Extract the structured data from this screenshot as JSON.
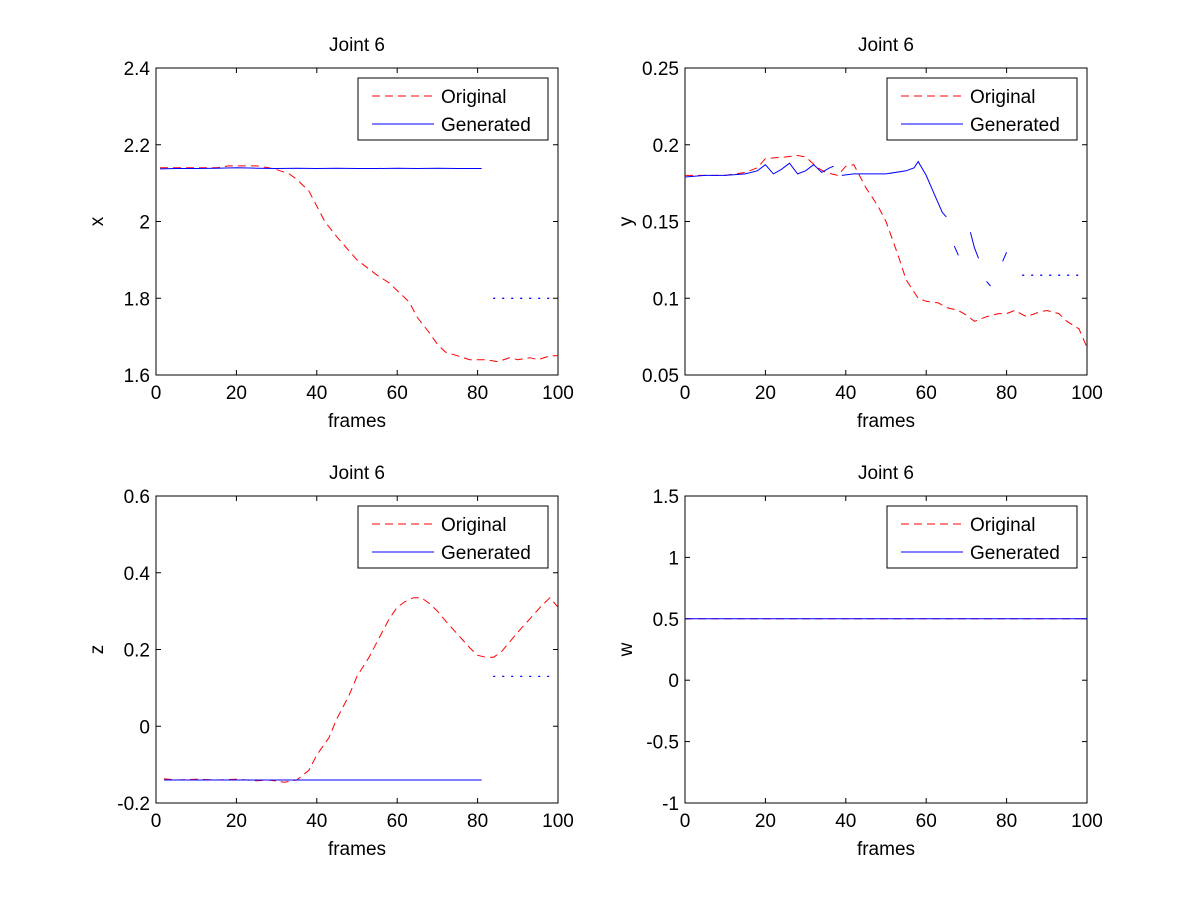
{
  "colors": {
    "original": "#ff0000",
    "generated": "#0000ff",
    "axis": "#000000"
  },
  "legend": {
    "original": "Original",
    "generated": "Generated",
    "placement": "top-right"
  },
  "chart_data": [
    {
      "type": "line",
      "title": "Joint 6",
      "xlabel": "frames",
      "ylabel": "x",
      "xlim": [
        0,
        100
      ],
      "ylim": [
        1.6,
        2.4
      ],
      "xticks": [
        0,
        20,
        40,
        60,
        80,
        100
      ],
      "xtick_labels": [
        "0",
        "20",
        "40",
        "60",
        "80",
        "100"
      ],
      "yticks": [
        1.6,
        1.8,
        2.0,
        2.2,
        2.4
      ],
      "ytick_labels": [
        "1.6",
        "1.8",
        "2",
        "2.2",
        "2.4"
      ],
      "grid": false,
      "series": [
        {
          "name": "Original",
          "style": "dashed",
          "x": [
            1,
            5,
            10,
            15,
            18,
            20,
            25,
            28,
            30,
            33,
            35,
            38,
            40,
            42,
            45,
            50,
            55,
            58,
            60,
            63,
            65,
            68,
            70,
            72,
            75,
            78,
            80,
            82,
            85,
            88,
            90,
            93,
            95,
            98,
            100
          ],
          "y": [
            2.14,
            2.14,
            2.14,
            2.14,
            2.145,
            2.145,
            2.145,
            2.14,
            2.135,
            2.125,
            2.11,
            2.08,
            2.04,
            2.0,
            1.96,
            1.9,
            1.86,
            1.84,
            1.82,
            1.79,
            1.75,
            1.71,
            1.68,
            1.66,
            1.65,
            1.64,
            1.64,
            1.64,
            1.635,
            1.645,
            1.64,
            1.645,
            1.64,
            1.65,
            1.65
          ]
        },
        {
          "name": "Generated",
          "style": "solid",
          "x": [
            1,
            5,
            10,
            15,
            20,
            25,
            30,
            35,
            40,
            45,
            50,
            55,
            60,
            65,
            70,
            75,
            81
          ],
          "y": [
            2.137,
            2.138,
            2.138,
            2.139,
            2.14,
            2.139,
            2.138,
            2.139,
            2.138,
            2.139,
            2.138,
            2.138,
            2.139,
            2.138,
            2.139,
            2.138,
            2.138
          ]
        },
        {
          "name": "Generated",
          "style": "dotted",
          "x": [
            84,
            87,
            90,
            93,
            96,
            99
          ],
          "y": [
            1.8,
            1.8,
            1.8,
            1.8,
            1.8,
            1.8
          ]
        }
      ]
    },
    {
      "type": "line",
      "title": "Joint 6",
      "xlabel": "frames",
      "ylabel": "y",
      "xlim": [
        0,
        100
      ],
      "ylim": [
        0.05,
        0.25
      ],
      "xticks": [
        0,
        20,
        40,
        60,
        80,
        100
      ],
      "xtick_labels": [
        "0",
        "20",
        "40",
        "60",
        "80",
        "100"
      ],
      "yticks": [
        0.05,
        0.1,
        0.15,
        0.2,
        0.25
      ],
      "ytick_labels": [
        "0.05",
        "0.1",
        "0.15",
        "0.2",
        "0.25"
      ],
      "grid": false,
      "series": [
        {
          "name": "Original",
          "style": "dashed",
          "x": [
            0,
            5,
            10,
            15,
            18,
            20,
            25,
            28,
            30,
            33,
            35,
            38,
            40,
            42,
            45,
            48,
            50,
            53,
            55,
            58,
            60,
            63,
            65,
            68,
            70,
            72,
            75,
            78,
            80,
            82,
            85,
            88,
            90,
            93,
            95,
            98,
            100
          ],
          "y": [
            0.18,
            0.18,
            0.18,
            0.182,
            0.185,
            0.191,
            0.192,
            0.193,
            0.192,
            0.185,
            0.182,
            0.18,
            0.186,
            0.187,
            0.172,
            0.16,
            0.15,
            0.128,
            0.112,
            0.1,
            0.098,
            0.097,
            0.094,
            0.092,
            0.089,
            0.085,
            0.088,
            0.09,
            0.09,
            0.092,
            0.088,
            0.091,
            0.092,
            0.09,
            0.085,
            0.08,
            0.068
          ]
        },
        {
          "name": "Generated",
          "style": "solid",
          "x": [
            0,
            5,
            10,
            15,
            18,
            20,
            22,
            24,
            26,
            28,
            30,
            32,
            34,
            36,
            37
          ],
          "y": [
            0.179,
            0.18,
            0.18,
            0.181,
            0.183,
            0.187,
            0.181,
            0.184,
            0.188,
            0.181,
            0.183,
            0.187,
            0.182,
            0.185,
            0.186
          ]
        },
        {
          "name": "Generated",
          "style": "solid",
          "x": [
            39,
            42,
            45,
            50,
            55,
            57,
            58,
            60,
            62,
            64,
            65
          ],
          "y": [
            0.18,
            0.181,
            0.181,
            0.181,
            0.183,
            0.185,
            0.189,
            0.18,
            0.168,
            0.156,
            0.153
          ]
        },
        {
          "name": "Generated",
          "style": "solid",
          "x": [
            67,
            68
          ],
          "y": [
            0.134,
            0.128
          ]
        },
        {
          "name": "Generated",
          "style": "solid",
          "x": [
            71,
            72,
            73
          ],
          "y": [
            0.143,
            0.133,
            0.126
          ]
        },
        {
          "name": "Generated",
          "style": "solid",
          "x": [
            75,
            76
          ],
          "y": [
            0.111,
            0.108
          ]
        },
        {
          "name": "Generated",
          "style": "solid",
          "x": [
            79,
            80
          ],
          "y": [
            0.124,
            0.13
          ]
        },
        {
          "name": "Generated",
          "style": "dotted",
          "x": [
            84,
            87,
            90,
            93,
            96,
            99
          ],
          "y": [
            0.115,
            0.115,
            0.115,
            0.115,
            0.115,
            0.115
          ]
        }
      ]
    },
    {
      "type": "line",
      "title": "Joint 6",
      "xlabel": "frames",
      "ylabel": "z",
      "xlim": [
        0,
        100
      ],
      "ylim": [
        -0.2,
        0.6
      ],
      "xticks": [
        0,
        20,
        40,
        60,
        80,
        100
      ],
      "xtick_labels": [
        "0",
        "20",
        "40",
        "60",
        "80",
        "100"
      ],
      "yticks": [
        -0.2,
        0,
        0.2,
        0.4,
        0.6
      ],
      "ytick_labels": [
        "-0.2",
        "0",
        "0.2",
        "0.4",
        "0.6"
      ],
      "grid": false,
      "series": [
        {
          "name": "Original",
          "style": "dashed",
          "x": [
            2,
            5,
            10,
            15,
            20,
            25,
            28,
            30,
            32,
            35,
            38,
            40,
            43,
            45,
            48,
            50,
            53,
            55,
            58,
            60,
            62,
            64,
            66,
            68,
            70,
            72,
            75,
            78,
            80,
            82,
            84,
            86,
            88,
            90,
            93,
            96,
            98,
            100
          ],
          "y": [
            -0.137,
            -0.14,
            -0.138,
            -0.14,
            -0.138,
            -0.142,
            -0.14,
            -0.143,
            -0.146,
            -0.14,
            -0.115,
            -0.075,
            -0.03,
            0.02,
            0.08,
            0.13,
            0.18,
            0.22,
            0.28,
            0.31,
            0.325,
            0.335,
            0.335,
            0.32,
            0.3,
            0.275,
            0.24,
            0.205,
            0.185,
            0.18,
            0.18,
            0.195,
            0.22,
            0.245,
            0.28,
            0.315,
            0.335,
            0.31
          ]
        },
        {
          "name": "Generated",
          "style": "solid",
          "x": [
            2,
            10,
            20,
            30,
            40,
            50,
            60,
            70,
            81
          ],
          "y": [
            -0.14,
            -0.14,
            -0.14,
            -0.14,
            -0.14,
            -0.14,
            -0.14,
            -0.14,
            -0.14
          ]
        },
        {
          "name": "Generated",
          "style": "dotted",
          "x": [
            84,
            87,
            90,
            93,
            96,
            99
          ],
          "y": [
            0.13,
            0.13,
            0.13,
            0.13,
            0.13,
            0.13
          ]
        }
      ]
    },
    {
      "type": "line",
      "title": "Joint 6",
      "xlabel": "frames",
      "ylabel": "w",
      "xlim": [
        0,
        100
      ],
      "ylim": [
        -1,
        1.5
      ],
      "xticks": [
        0,
        20,
        40,
        60,
        80,
        100
      ],
      "xtick_labels": [
        "0",
        "20",
        "40",
        "60",
        "80",
        "100"
      ],
      "yticks": [
        -1,
        -0.5,
        0,
        0.5,
        1,
        1.5
      ],
      "ytick_labels": [
        "-1",
        "-0.5",
        "0",
        "0.5",
        "1",
        "1.5"
      ],
      "grid": false,
      "series": [
        {
          "name": "Original",
          "style": "dashed",
          "x": [
            0,
            100
          ],
          "y": [
            0.5,
            0.5
          ]
        },
        {
          "name": "Generated",
          "style": "solid",
          "x": [
            0,
            100
          ],
          "y": [
            0.5,
            0.5
          ]
        }
      ]
    }
  ]
}
